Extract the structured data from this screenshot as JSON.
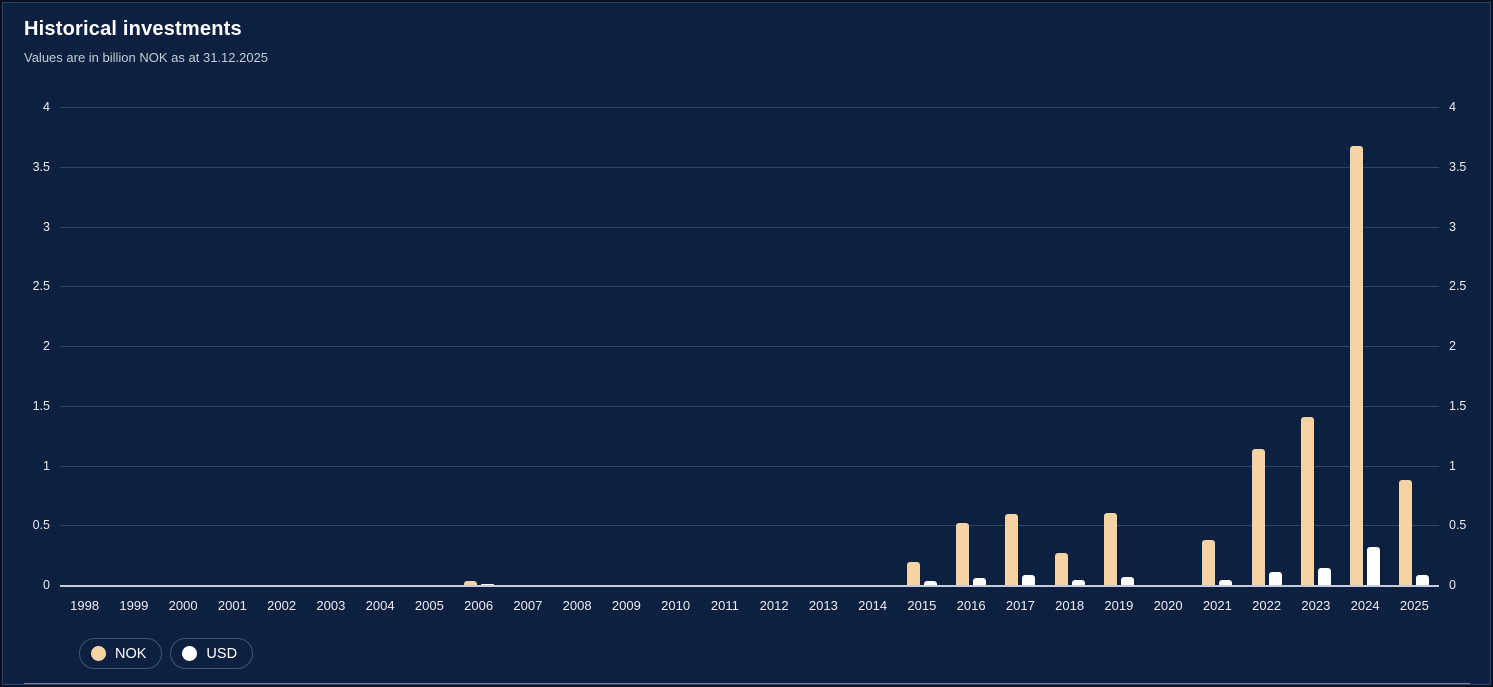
{
  "header": {
    "title": "Historical investments",
    "subtitle": "Values are in billion NOK as at 31.12.2025"
  },
  "chart_data": {
    "type": "bar",
    "title": "Historical investments",
    "subtitle": "Values are in billion NOK as at 31.12.2025",
    "categories": [
      "1998",
      "1999",
      "2000",
      "2001",
      "2002",
      "2003",
      "2004",
      "2005",
      "2006",
      "2007",
      "2008",
      "2009",
      "2010",
      "2011",
      "2012",
      "2013",
      "2014",
      "2015",
      "2016",
      "2017",
      "2018",
      "2019",
      "2020",
      "2021",
      "2022",
      "2023",
      "2024",
      "2025"
    ],
    "series": [
      {
        "name": "NOK",
        "color": "#f5d3a4",
        "values": [
          0,
          0,
          0,
          0,
          0,
          0,
          0,
          0,
          0.03,
          0,
          0,
          0,
          0,
          0,
          0,
          0,
          0,
          0.19,
          0.52,
          0.59,
          0.27,
          0.6,
          0,
          0.38,
          1.14,
          1.41,
          3.67,
          0.88
        ]
      },
      {
        "name": "USD",
        "color": "#ffffff",
        "values": [
          0,
          0,
          0,
          0,
          0,
          0,
          0,
          0,
          0.01,
          0,
          0,
          0,
          0,
          0,
          0,
          0,
          0,
          0.03,
          0.06,
          0.08,
          0.04,
          0.07,
          0,
          0.04,
          0.11,
          0.14,
          0.32,
          0.08
        ]
      }
    ],
    "xlabel": "",
    "ylabel": "",
    "ylim": [
      0,
      4
    ],
    "yticks": [
      0,
      0.5,
      1,
      1.5,
      2,
      2.5,
      3,
      3.5,
      4
    ],
    "grid": true,
    "dual_y_axis": true,
    "legend_position": "bottom-left"
  },
  "legend": {
    "items": [
      {
        "label": "NOK",
        "color": "#f5d3a4"
      },
      {
        "label": "USD",
        "color": "#ffffff"
      }
    ]
  },
  "colors": {
    "background": "#0d2040",
    "gridline": "#33435e",
    "baseline": "#c6ccd9",
    "axis_text": "#e9edf3"
  }
}
